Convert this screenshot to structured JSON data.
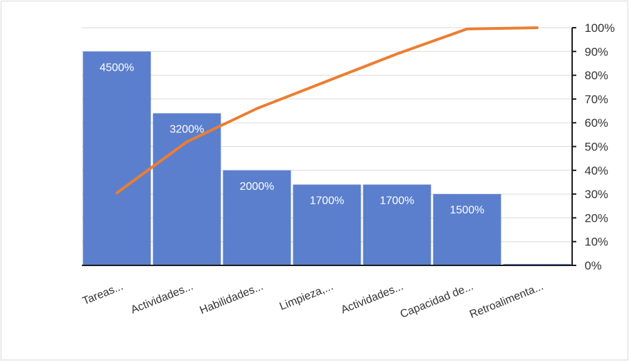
{
  "chart_data": {
    "type": "bar",
    "categories": [
      "Tareas...",
      "Actividades...",
      "Habilidades...",
      "Limpieza,...",
      "Actividades...",
      "Capacidad de...",
      "Retroalimenta..."
    ],
    "series": [
      {
        "type": "bar",
        "values": [
          45,
          32,
          20,
          17,
          17,
          15,
          0.3
        ],
        "data_labels": [
          "4500%",
          "3200%",
          "2000%",
          "1700%",
          "1700%",
          "1500%",
          ""
        ],
        "color": "#5b7fcd"
      },
      {
        "type": "line",
        "values": [
          30.5,
          52,
          66,
          77.5,
          89,
          99.5,
          100
        ],
        "color": "#ed7d31",
        "axis": "secondary"
      }
    ],
    "primary_ylim": [
      0,
      50
    ],
    "secondary_ylim": [
      0,
      100
    ],
    "secondary_ticks": [
      "0%",
      "10%",
      "20%",
      "30%",
      "40%",
      "50%",
      "60%",
      "70%",
      "80%",
      "90%",
      "100%"
    ],
    "grid": true,
    "legend": "none"
  }
}
